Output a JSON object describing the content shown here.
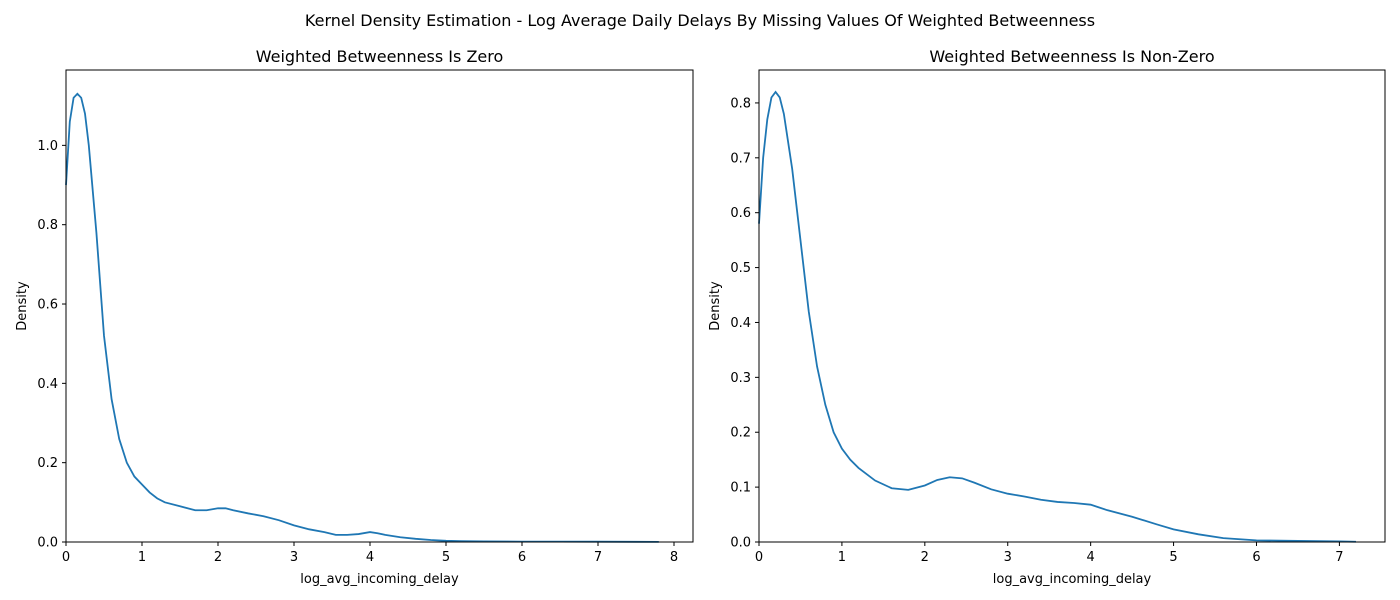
{
  "figure": {
    "suptitle": "Kernel Density Estimation - Log Average Daily Delays By Missing Values Of Weighted Betweenness"
  },
  "colors": {
    "line": "#1f77b4",
    "axes": "#000000",
    "background": "#ffffff"
  },
  "chart_data": [
    {
      "type": "line",
      "title": "Weighted Betweenness Is Zero",
      "xlabel": "log_avg_incoming_delay",
      "ylabel": "Density",
      "xlim": [
        0,
        8.25
      ],
      "ylim": [
        0,
        1.19
      ],
      "xticks": [
        0,
        1,
        2,
        3,
        4,
        5,
        6,
        7,
        8
      ],
      "yticks": [
        0.0,
        0.2,
        0.4,
        0.6,
        0.8,
        1.0
      ],
      "ytick_format": 1,
      "grid": false,
      "series": [
        {
          "x": [
            0.0,
            0.05,
            0.1,
            0.15,
            0.2,
            0.25,
            0.3,
            0.4,
            0.5,
            0.6,
            0.7,
            0.8,
            0.9,
            1.0,
            1.1,
            1.2,
            1.3,
            1.5,
            1.7,
            1.85,
            2.0,
            2.1,
            2.2,
            2.4,
            2.6,
            2.8,
            3.0,
            3.2,
            3.4,
            3.55,
            3.7,
            3.85,
            4.0,
            4.1,
            4.2,
            4.4,
            4.6,
            4.8,
            5.0,
            5.2,
            5.5,
            6.0,
            6.5,
            7.0,
            7.5,
            7.8
          ],
          "y": [
            0.9,
            1.06,
            1.12,
            1.13,
            1.12,
            1.08,
            1.0,
            0.78,
            0.52,
            0.36,
            0.26,
            0.2,
            0.165,
            0.145,
            0.125,
            0.11,
            0.1,
            0.09,
            0.08,
            0.08,
            0.085,
            0.085,
            0.08,
            0.072,
            0.065,
            0.055,
            0.042,
            0.032,
            0.025,
            0.018,
            0.018,
            0.02,
            0.025,
            0.022,
            0.018,
            0.012,
            0.008,
            0.005,
            0.003,
            0.002,
            0.0015,
            0.001,
            0.001,
            0.0008,
            0.0005,
            0.0003
          ]
        }
      ]
    },
    {
      "type": "line",
      "title": "Weighted Betweenness Is Non-Zero",
      "xlabel": "log_avg_incoming_delay",
      "ylabel": "Density",
      "xlim": [
        0,
        7.55
      ],
      "ylim": [
        0,
        0.86
      ],
      "xticks": [
        0,
        1,
        2,
        3,
        4,
        5,
        6,
        7
      ],
      "yticks": [
        0.0,
        0.1,
        0.2,
        0.3,
        0.4,
        0.5,
        0.6,
        0.7,
        0.8
      ],
      "ytick_format": 1,
      "grid": false,
      "series": [
        {
          "x": [
            0.0,
            0.05,
            0.1,
            0.15,
            0.2,
            0.25,
            0.3,
            0.4,
            0.5,
            0.6,
            0.7,
            0.8,
            0.9,
            1.0,
            1.1,
            1.2,
            1.4,
            1.6,
            1.8,
            2.0,
            2.15,
            2.3,
            2.45,
            2.6,
            2.8,
            3.0,
            3.2,
            3.4,
            3.6,
            3.8,
            4.0,
            4.2,
            4.5,
            4.8,
            5.0,
            5.3,
            5.6,
            6.0,
            6.5,
            7.0,
            7.2
          ],
          "y": [
            0.58,
            0.7,
            0.77,
            0.81,
            0.82,
            0.81,
            0.78,
            0.68,
            0.55,
            0.42,
            0.32,
            0.25,
            0.2,
            0.17,
            0.15,
            0.135,
            0.112,
            0.098,
            0.095,
            0.103,
            0.113,
            0.118,
            0.116,
            0.108,
            0.096,
            0.088,
            0.083,
            0.077,
            0.073,
            0.071,
            0.068,
            0.058,
            0.046,
            0.032,
            0.023,
            0.014,
            0.007,
            0.003,
            0.002,
            0.001,
            0.0005
          ]
        }
      ]
    }
  ]
}
